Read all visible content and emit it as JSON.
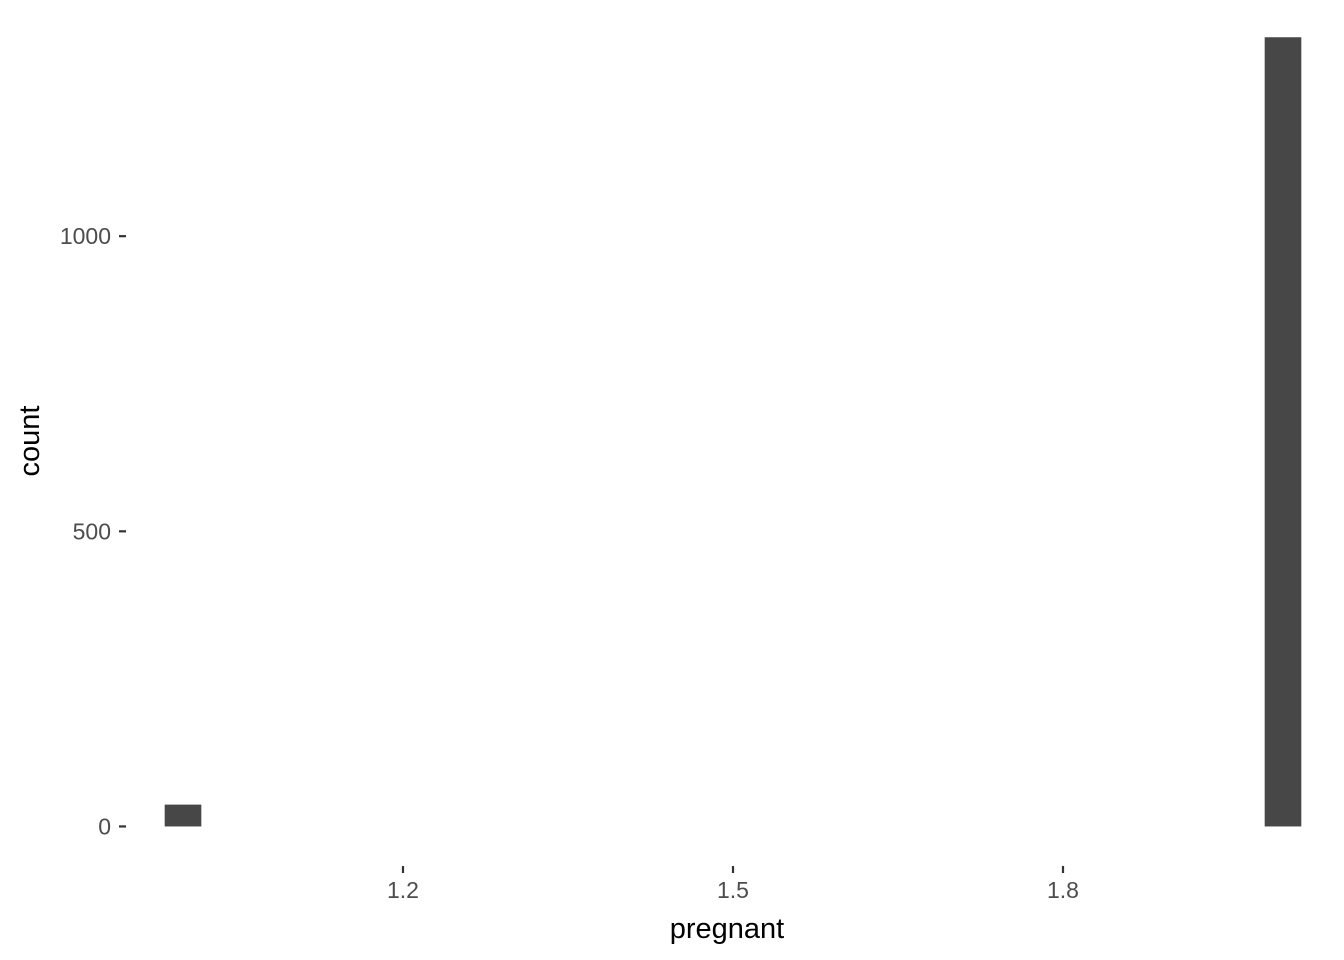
{
  "chart_data": {
    "type": "bar",
    "subtype": "histogram",
    "xlabel": "pregnant",
    "ylabel": "count",
    "x_ticks": [
      {
        "value": 1.2,
        "label": "1.2"
      },
      {
        "value": 1.5,
        "label": "1.5"
      },
      {
        "value": 1.8,
        "label": "1.8"
      }
    ],
    "y_ticks": [
      {
        "value": 0,
        "label": "0"
      },
      {
        "value": 500,
        "label": "500"
      },
      {
        "value": 1000,
        "label": "1000"
      }
    ],
    "xlim": [
      0.95,
      2.05
    ],
    "ylim": [
      -67,
      1373
    ],
    "bins": [
      {
        "x": 1.0,
        "count": 37
      },
      {
        "x": 2.0,
        "count": 1337
      }
    ],
    "bin_width": 0.0333,
    "bar_color": "#474747",
    "grid": false,
    "background": "#ffffff"
  }
}
